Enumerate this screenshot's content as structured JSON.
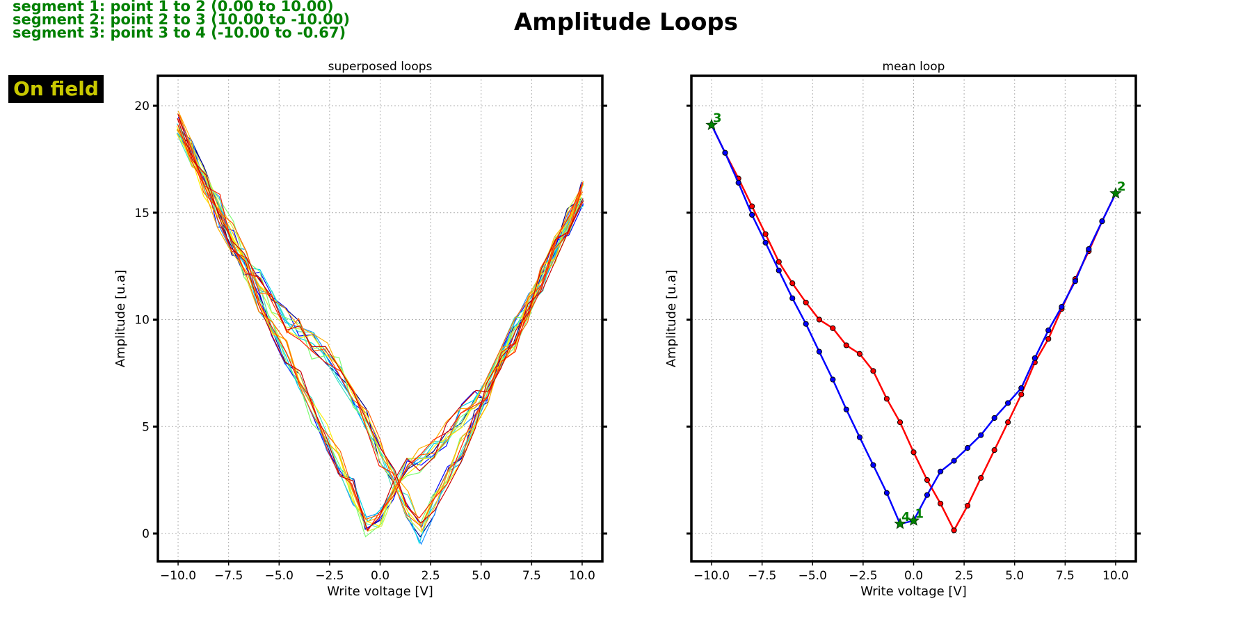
{
  "figure_title": "Amplitude Loops",
  "segments_info": [
    "segment 1: point 1 to 2 (0.00 to 10.00)",
    "segment 2: point 2 to 3 (10.00 to -10.00)",
    "segment 3: point 3 to 4 (-10.00 to -0.67)"
  ],
  "badge": {
    "text": "On field",
    "bg": "#000000",
    "fg": "#c8c800"
  },
  "chart_data": [
    {
      "type": "line",
      "title": "superposed loops",
      "xlabel": "Write voltage [V]",
      "ylabel": "Amplitude [u.a]",
      "xlim": [
        -11,
        11
      ],
      "ylim": [
        -1.3,
        21.4
      ],
      "xticks": [
        "-10.0",
        "-7.5",
        "-5.0",
        "-2.5",
        "0.0",
        "2.5",
        "5.0",
        "7.5",
        "10.0"
      ],
      "yticks": [
        "0",
        "5",
        "10",
        "15",
        "20"
      ],
      "grid": true,
      "colormap": [
        "#00008b",
        "#0000ff",
        "#1e90ff",
        "#00d5e8",
        "#40e0c0",
        "#7cfc70",
        "#d4f040",
        "#ffee00",
        "#ffb000",
        "#ff6000",
        "#ff2000",
        "#cc0000"
      ],
      "n_loops": 12,
      "x": [
        -10,
        -9.33,
        -8.67,
        -8,
        -7.33,
        -6.67,
        -6,
        -5.33,
        -4.67,
        -4,
        -3.33,
        -2.67,
        -2,
        -1.33,
        -0.67,
        0,
        0.67,
        1.33,
        2,
        2.67,
        3.33,
        4,
        4.67,
        5.33,
        6,
        6.67,
        7.33,
        8,
        8.67,
        9.33,
        10
      ],
      "reference_forward": [
        19.1,
        17.8,
        16.6,
        15.3,
        14.0,
        12.7,
        11.7,
        10.8,
        10.0,
        9.6,
        8.8,
        8.4,
        7.6,
        6.3,
        5.2,
        3.8,
        2.5,
        1.4,
        0.15,
        1.3,
        2.6,
        3.9,
        5.2,
        6.5,
        8.0,
        9.1,
        10.5,
        11.9,
        13.2,
        14.6,
        15.9
      ],
      "reference_reverse": [
        19.1,
        17.8,
        16.4,
        14.9,
        13.6,
        12.3,
        11.0,
        9.8,
        8.5,
        7.2,
        5.8,
        4.5,
        3.2,
        1.9,
        0.45,
        0.6,
        1.8,
        2.9,
        3.4,
        4.0,
        4.6,
        5.4,
        6.1,
        6.8,
        8.2,
        9.5,
        10.6,
        11.8,
        13.3,
        14.6,
        15.9
      ]
    },
    {
      "type": "line",
      "title": "mean loop",
      "xlabel": "Write voltage [V]",
      "ylabel": "Amplitude [u.a]",
      "xlim": [
        -11,
        11
      ],
      "ylim": [
        -1.3,
        21.4
      ],
      "xticks": [
        "-10.0",
        "-7.5",
        "-5.0",
        "-2.5",
        "0.0",
        "2.5",
        "5.0",
        "7.5",
        "10.0"
      ],
      "grid": true,
      "x": [
        -10,
        -9.33,
        -8.67,
        -8,
        -7.33,
        -6.67,
        -6,
        -5.33,
        -4.67,
        -4,
        -3.33,
        -2.67,
        -2,
        -1.33,
        -0.67,
        0,
        0.67,
        1.33,
        2,
        2.67,
        3.33,
        4,
        4.67,
        5.33,
        6,
        6.67,
        7.33,
        8,
        8.67,
        9.33,
        10
      ],
      "series": [
        {
          "color": "#ff0000",
          "values": [
            19.1,
            17.8,
            16.6,
            15.3,
            14.0,
            12.7,
            11.7,
            10.8,
            10.0,
            9.6,
            8.8,
            8.4,
            7.6,
            6.3,
            5.2,
            3.8,
            2.5,
            1.4,
            0.15,
            1.3,
            2.6,
            3.9,
            5.2,
            6.5,
            8.0,
            9.1,
            10.5,
            11.9,
            13.2,
            14.6,
            15.9
          ]
        },
        {
          "color": "#0000ff",
          "values": [
            19.1,
            17.8,
            16.4,
            14.9,
            13.6,
            12.3,
            11.0,
            9.8,
            8.5,
            7.2,
            5.8,
            4.5,
            3.2,
            1.9,
            0.45,
            0.6,
            1.8,
            2.9,
            3.4,
            4.0,
            4.6,
            5.4,
            6.1,
            6.8,
            8.2,
            9.5,
            10.6,
            11.8,
            13.3,
            14.6,
            15.9
          ]
        }
      ],
      "markers": [
        {
          "label": "1",
          "x": 0.0,
          "y": 0.6
        },
        {
          "label": "2",
          "x": 10.0,
          "y": 15.9
        },
        {
          "label": "3",
          "x": -10.0,
          "y": 19.1
        },
        {
          "label": "4",
          "x": -0.67,
          "y": 0.45
        }
      ],
      "marker_color": "#008000"
    }
  ]
}
